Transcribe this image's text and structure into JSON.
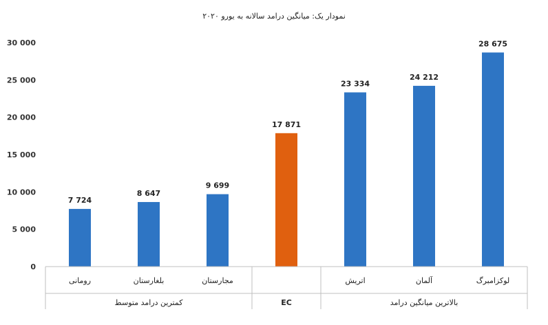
{
  "chart_data": {
    "type": "bar",
    "title": "نمودار یک: میانگین درامد سالانه به یورو ۲۰۲۰",
    "categories": [
      "رومانی",
      "بلغارستان",
      "مجارستان",
      "EC",
      "اتریش",
      "آلمان",
      "لوکزامبرگ"
    ],
    "values": [
      7724,
      8647,
      9699,
      17871,
      23334,
      24212,
      28675
    ],
    "value_labels": [
      "7 724",
      "8 647",
      "9 699",
      "17 871",
      "23 334",
      "24 212",
      "28 675"
    ],
    "category_labels": [
      "رومانی",
      "بلغارستان",
      "مجارستان",
      "",
      "اتریش",
      "آلمان",
      "لوکزامبرگ"
    ],
    "groups": [
      {
        "label": "کمترین درامد متوسط",
        "from": 0,
        "to": 2
      },
      {
        "label": "EC",
        "from": 3,
        "to": 3
      },
      {
        "label": "بالاترین میانگین درامد",
        "from": 4,
        "to": 6
      }
    ],
    "ylim": [
      0,
      30000
    ],
    "yticks": [
      0,
      5000,
      10000,
      15000,
      20000,
      25000,
      30000
    ],
    "ytick_labels": [
      "0",
      "5 000",
      "10 000",
      "15 000",
      "20 000",
      "25 000",
      "30 000"
    ],
    "colors": {
      "default": "#2e75c4",
      "highlight": "#e0600f"
    },
    "highlight_index": 3,
    "grid": false,
    "legend": "none"
  }
}
